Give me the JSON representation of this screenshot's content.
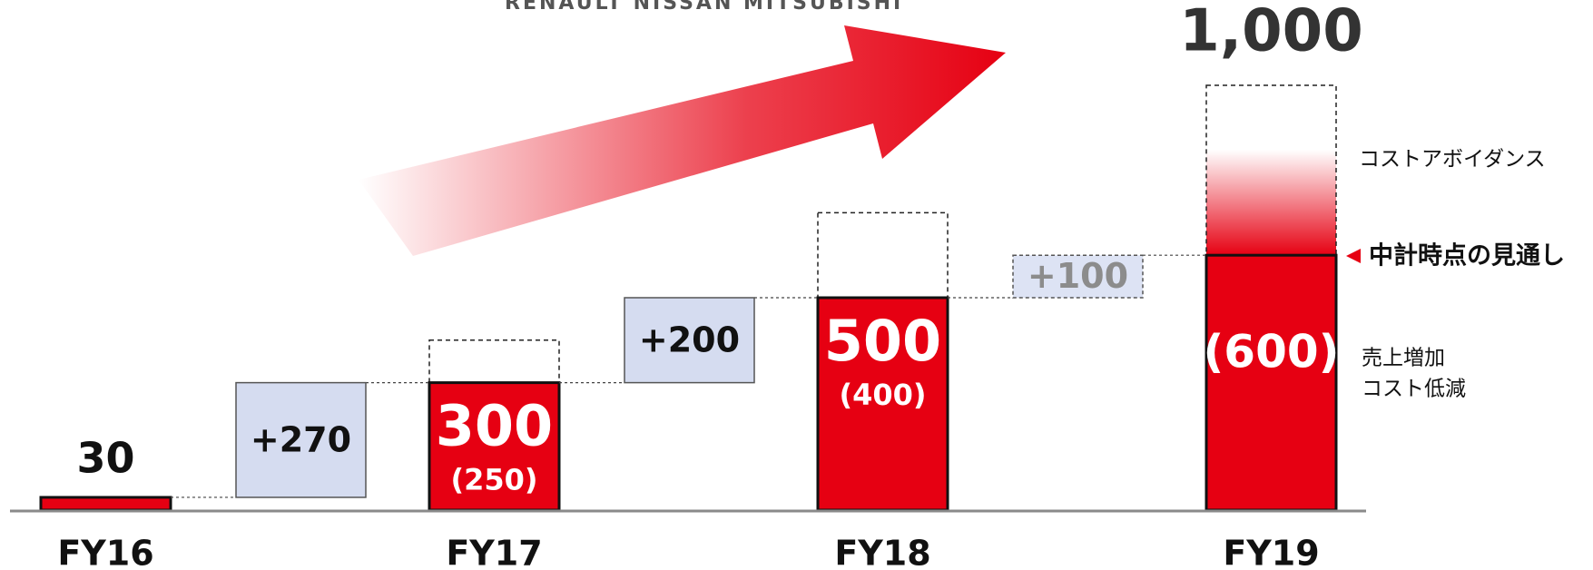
{
  "chart_data": {
    "type": "waterfall",
    "header": "RENAULT NISSAN MITSUBISHI",
    "categories": [
      "FY16",
      "FY17",
      "FY18",
      "FY19"
    ],
    "values": [
      30,
      300,
      500,
      600
    ],
    "value_labels": [
      "30",
      "300",
      "500",
      "(600)"
    ],
    "sub_labels": [
      null,
      "(250)",
      "(400)",
      null
    ],
    "targets": [
      null,
      400,
      700,
      1000
    ],
    "target_labels": [
      null,
      null,
      null,
      "1,000"
    ],
    "increments": [
      {
        "value": 270,
        "label": "+270",
        "fill": "#d5dcf0",
        "text_color": "#111111"
      },
      {
        "value": 200,
        "label": "+200",
        "fill": "#d5dcf0",
        "text_color": "#111111"
      },
      {
        "value": 100,
        "label": "+100",
        "fill": "#dde3f4",
        "text_color": "#8c8c8c"
      }
    ],
    "color": "#e60012",
    "ylim": [
      0,
      1000
    ],
    "annotations": [
      "コストアボイダンス",
      "中計時点の見通し",
      "売上増加",
      "コスト低減"
    ]
  }
}
